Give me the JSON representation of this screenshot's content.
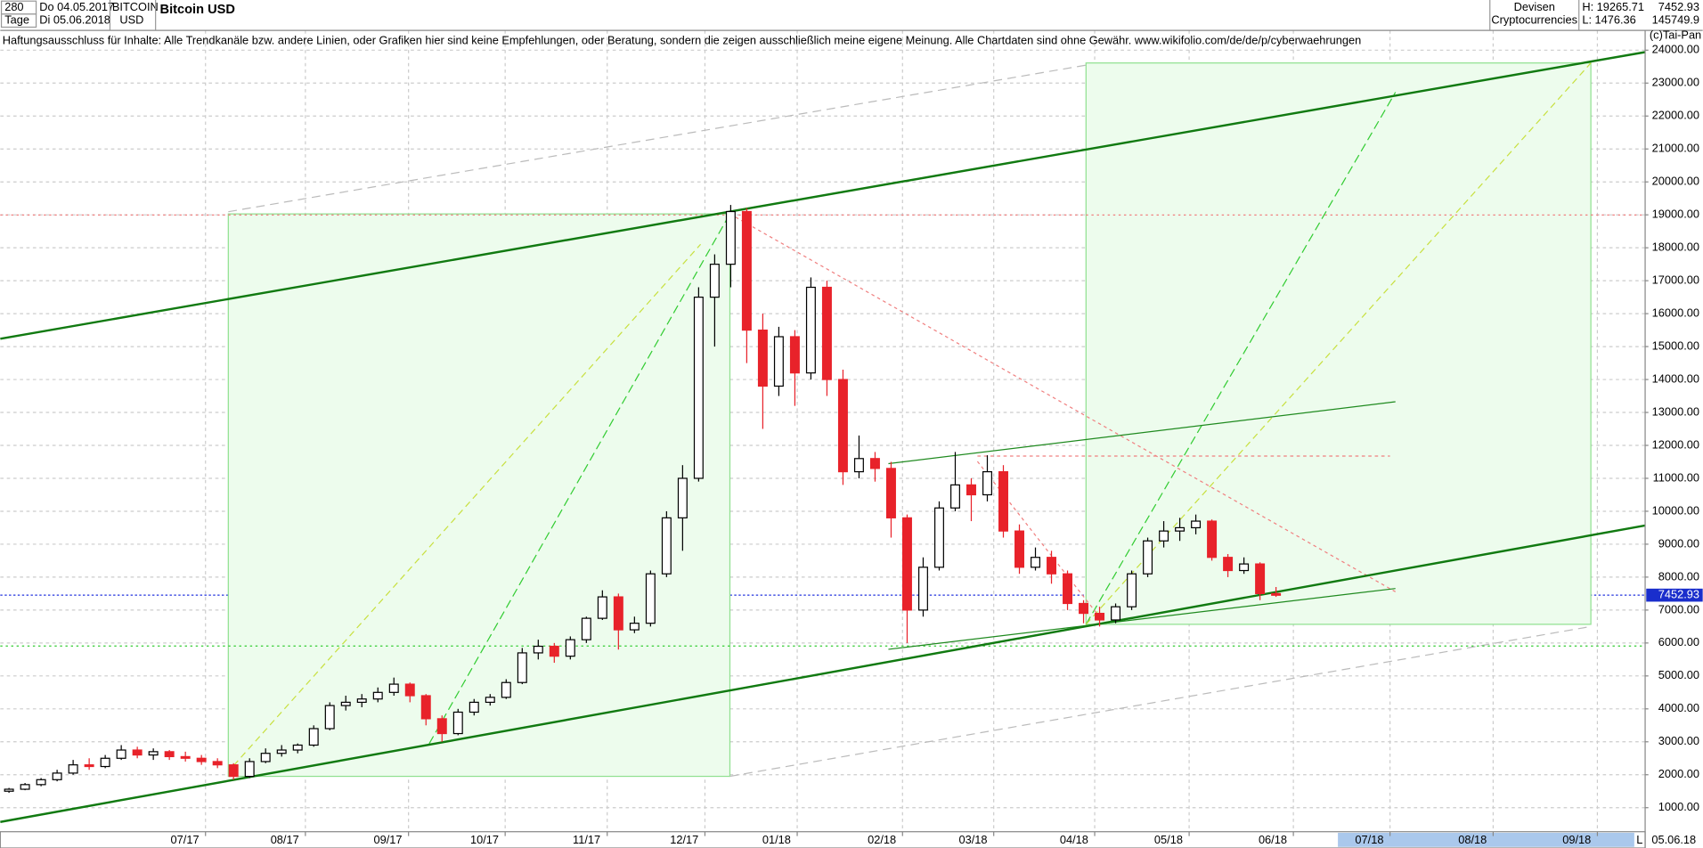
{
  "header": {
    "period": "280",
    "unit": "Tage",
    "from": "Do 04.05.2017",
    "to": "Di 05.06.2018",
    "symbol": "BITCOIN",
    "currency": "USD",
    "title": "Bitcoin USD",
    "market": "Devisen",
    "group": "Cryptocurrencies",
    "high": "H: 19265.71",
    "low": "L: 1476.36",
    "volume": "145749.9",
    "disclaimer": "Haftungsausschluss für Inhalte: Alle Trendkanäle bzw. andere Linien, oder Grafiken hier sind keine Empfehlungen, oder Beratung, sondern die zeigen ausschließlich meine eigene Meinung. Alle Chartdaten sind ohne Gewähr.  www.wikifolio.com/de/de/p/cyberwaehrungen",
    "copyright": "(c)Tai-Pan",
    "date": "05.06.18",
    "scale": "L"
  },
  "chart_data": {
    "type": "candlestick",
    "last": 7452.93,
    "x_labels": [
      "07/17",
      "08/17",
      "09/17",
      "10/17",
      "11/17",
      "12/17",
      "01/18",
      "02/18",
      "03/18",
      "04/18",
      "05/18",
      "06/18",
      "07/18",
      "08/18",
      "09/18"
    ],
    "up_color": "#000000",
    "down_color": "#e8222a",
    "grid": true,
    "ylim": [
      270,
      24600
    ],
    "yticks": [
      {
        "value": 1000,
        "label": "1000.00"
      },
      {
        "value": 2000,
        "label": "2000.00"
      },
      {
        "value": 3000,
        "label": "3000.00"
      },
      {
        "value": 4000,
        "label": "4000.00"
      },
      {
        "value": 5000,
        "label": "5000.00"
      },
      {
        "value": 6000,
        "label": "6000.00"
      },
      {
        "value": 7000,
        "label": "7000.00"
      },
      {
        "value": 8000,
        "label": "8000.00"
      },
      {
        "value": 9000,
        "label": "9000.00"
      },
      {
        "value": 10000,
        "label": "10000.00"
      },
      {
        "value": 11000,
        "label": "11000.00"
      },
      {
        "value": 12000,
        "label": "12000.00"
      },
      {
        "value": 13000,
        "label": "13000.00"
      },
      {
        "value": 14000,
        "label": "14000.00"
      },
      {
        "value": 15000,
        "label": "15000.00"
      },
      {
        "value": 16000,
        "label": "16000.00"
      },
      {
        "value": 17000,
        "label": "17000.00"
      },
      {
        "value": 18000,
        "label": "18000.00"
      },
      {
        "value": 19000,
        "label": "19000.00"
      },
      {
        "value": 20000,
        "label": "20000.00"
      },
      {
        "value": 21000,
        "label": "21000.00"
      },
      {
        "value": 22000,
        "label": "22000.00"
      },
      {
        "value": 23000,
        "label": "23000.00"
      },
      {
        "value": 24000,
        "label": "24000.00"
      }
    ],
    "open": [
      1500,
      1560,
      1700,
      1850,
      2050,
      2300,
      2250,
      2500,
      2750,
      2600,
      2700,
      2550,
      2500,
      2400,
      2300,
      1950,
      2400,
      2650,
      2750,
      2900,
      3400,
      4100,
      4200,
      4300,
      4500,
      4750,
      4400,
      3700,
      3250,
      3900,
      4200,
      4350,
      4800,
      5700,
      5900,
      5600,
      6100,
      6750,
      7400,
      6400,
      6600,
      8100,
      9800,
      11000,
      16500,
      17500,
      19100,
      15500,
      13800,
      15300,
      14200,
      16800,
      14000,
      11200,
      11600,
      11300,
      9800,
      7000,
      8300,
      10100,
      10800,
      10500,
      11200,
      9400,
      8300,
      8600,
      8100,
      7200,
      6900,
      6700,
      7100,
      8100,
      9100,
      9400,
      9500,
      9700,
      8600,
      8200,
      8400,
      7500
    ],
    "high": [
      1600,
      1750,
      1900,
      2150,
      2450,
      2500,
      2600,
      2900,
      2850,
      2800,
      2750,
      2700,
      2600,
      2500,
      2350,
      2500,
      2800,
      2900,
      2950,
      3500,
      4200,
      4400,
      4450,
      4650,
      4950,
      4800,
      4450,
      3800,
      4000,
      4300,
      4450,
      4900,
      5850,
      6100,
      6000,
      6200,
      6800,
      7600,
      7500,
      6800,
      8200,
      10000,
      11400,
      16800,
      17800,
      19300,
      19200,
      16000,
      15600,
      15500,
      17100,
      17000,
      14300,
      12300,
      11800,
      11500,
      9900,
      8600,
      10300,
      11800,
      11000,
      11700,
      11400,
      9600,
      8900,
      8800,
      8200,
      7300,
      7100,
      7200,
      8200,
      9200,
      9700,
      9800,
      9900,
      9750,
      8700,
      8600,
      8450,
      7700
    ],
    "low": [
      1450,
      1530,
      1650,
      1800,
      2000,
      2150,
      2200,
      2450,
      2500,
      2450,
      2450,
      2400,
      2300,
      2200,
      1850,
      1900,
      2350,
      2550,
      2650,
      2850,
      3350,
      3950,
      4050,
      4200,
      4400,
      4200,
      3500,
      3000,
      3200,
      3800,
      4100,
      4300,
      4750,
      5500,
      5400,
      5500,
      6000,
      6700,
      5800,
      6300,
      6500,
      8000,
      8800,
      10900,
      15000,
      16800,
      14500,
      12500,
      13500,
      13200,
      14000,
      13500,
      10800,
      11000,
      10900,
      9200,
      6000,
      6800,
      8200,
      10000,
      9700,
      10300,
      9200,
      8100,
      8200,
      7800,
      7000,
      6600,
      6500,
      6600,
      7000,
      8000,
      8900,
      9100,
      9300,
      8500,
      8000,
      8100,
      7300,
      7400
    ],
    "close": [
      1560,
      1700,
      1850,
      2050,
      2300,
      2250,
      2500,
      2750,
      2600,
      2700,
      2550,
      2500,
      2400,
      2300,
      1950,
      2400,
      2650,
      2750,
      2900,
      3400,
      4100,
      4200,
      4300,
      4500,
      4750,
      4400,
      3700,
      3250,
      3900,
      4200,
      4350,
      4800,
      5700,
      5900,
      5600,
      6100,
      6750,
      7400,
      6400,
      6600,
      8100,
      9800,
      11000,
      16500,
      17500,
      19100,
      15500,
      13800,
      15300,
      14200,
      16800,
      14000,
      11200,
      11600,
      11300,
      9800,
      7000,
      8300,
      10100,
      10800,
      10500,
      11200,
      9400,
      8300,
      8600,
      8100,
      7200,
      6900,
      6700,
      7100,
      8100,
      9100,
      9400,
      9500,
      9700,
      8600,
      8200,
      8400,
      7500,
      7450
    ]
  }
}
